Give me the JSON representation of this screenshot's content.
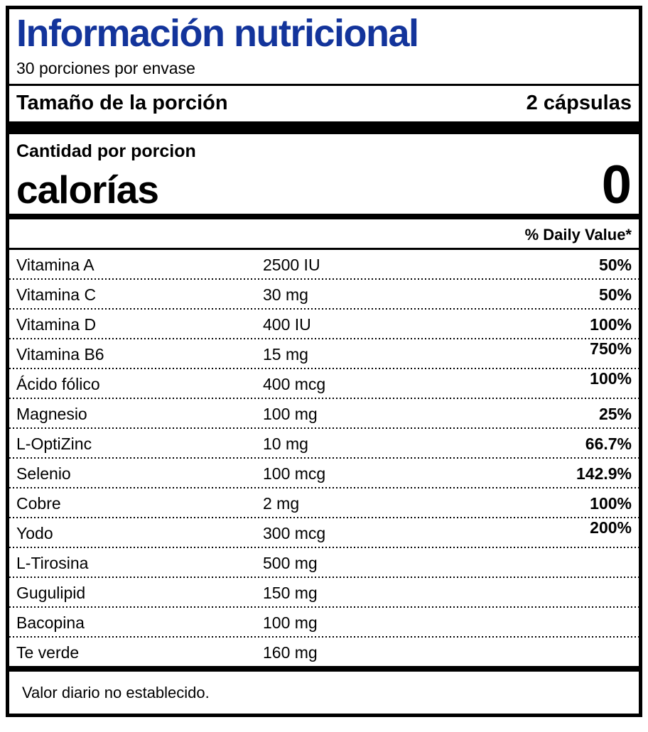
{
  "label": {
    "title": "Información nutricional",
    "title_color": "#13349B",
    "servings_per_container": "30 porciones por envase",
    "serving_size_label": "Tamaño de la porción",
    "serving_size_value": "2 cápsulas",
    "amount_per_serving": "Cantidad por porcion",
    "calories_label": "calorías",
    "calories_value": "0",
    "daily_value_header": "% Daily Value*",
    "footnote": "Valor diario no establecido."
  },
  "nutrients": [
    {
      "name": "Vitamina A",
      "amount": "2500 IU",
      "dv": "50%"
    },
    {
      "name": "Vitamina C",
      "amount": "30 mg",
      "dv": "50%"
    },
    {
      "name": "Vitamina D",
      "amount": "400 IU",
      "dv": "100%"
    },
    {
      "name": "Vitamina B6",
      "amount": "15 mg",
      "dv": "750%",
      "raised": true
    },
    {
      "name": "Ácido fólico",
      "amount": "400 mcg",
      "dv": "100%",
      "raised": true
    },
    {
      "name": "Magnesio",
      "amount": "100 mg",
      "dv": "25%"
    },
    {
      "name": "L-OptiZinc",
      "amount": "10 mg",
      "dv": "66.7%"
    },
    {
      "name": "Selenio",
      "amount": "100 mcg",
      "dv": "142.9%"
    },
    {
      "name": "Cobre",
      "amount": "2 mg",
      "dv": "100%"
    },
    {
      "name": "Yodo",
      "amount": "300 mcg",
      "dv": "200%",
      "raised": true
    },
    {
      "name": "L-Tirosina",
      "amount": "500 mg",
      "dv": ""
    },
    {
      "name": "Gugulipid",
      "amount": "150 mg",
      "dv": ""
    },
    {
      "name": "Bacopina",
      "amount": "100 mg",
      "dv": ""
    },
    {
      "name": "Te verde",
      "amount": "160 mg",
      "dv": ""
    }
  ]
}
